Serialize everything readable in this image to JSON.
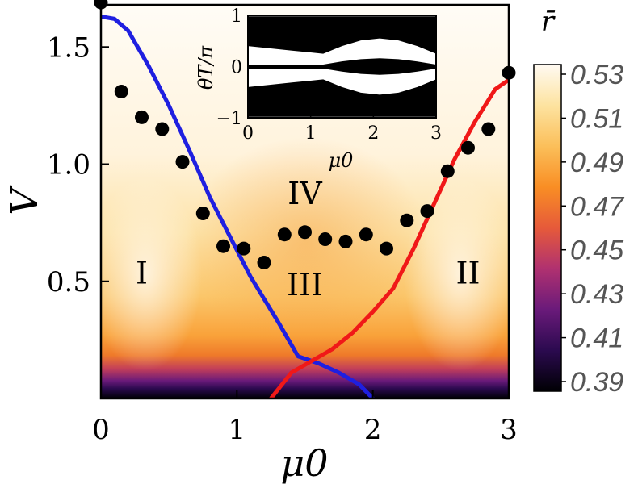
{
  "chart_data": {
    "type": "heatmap",
    "title": "",
    "xlabel": "μ0",
    "ylabel": "V",
    "xlim": [
      0,
      3
    ],
    "ylim": [
      0,
      1.68
    ],
    "x_ticks": [
      "0",
      "1",
      "2",
      "3"
    ],
    "y_ticks": [
      "0.5",
      "1.0",
      "1.5"
    ],
    "y_tick_values": [
      0.5,
      1.0,
      1.5
    ],
    "colorbar": {
      "label": "r̄",
      "min": 0.39,
      "max": 0.53,
      "ticks": [
        "0.53",
        "0.51",
        "0.49",
        "0.47",
        "0.45",
        "0.43",
        "0.41",
        "0.39"
      ],
      "colors": [
        "#000004",
        "#2b0a4f",
        "#6a1a7a",
        "#b03170",
        "#e65a3a",
        "#f98e24",
        "#fbbf5a",
        "#fde3a0",
        "#fffaf2"
      ]
    },
    "regions": [
      {
        "label": "I",
        "x": 0.3,
        "y": 0.49
      },
      {
        "label": "II",
        "x": 2.7,
        "y": 0.49
      },
      {
        "label": "III",
        "x": 1.5,
        "y": 0.44
      },
      {
        "label": "IV",
        "x": 1.5,
        "y": 0.83
      }
    ],
    "series": [
      {
        "name": "blue-boundary",
        "color": "#1f1fe0",
        "x": [
          0.0,
          0.1,
          0.2,
          0.35,
          0.5,
          0.65,
          0.8,
          0.95,
          1.1,
          1.3,
          1.45,
          1.6,
          1.75,
          1.9,
          2.0
        ],
        "y": [
          1.63,
          1.62,
          1.57,
          1.42,
          1.25,
          1.06,
          0.86,
          0.69,
          0.52,
          0.33,
          0.18,
          0.15,
          0.11,
          0.06,
          0.0
        ]
      },
      {
        "name": "red-boundary",
        "color": "#f01818",
        "x": [
          1.25,
          1.4,
          1.55,
          1.7,
          1.85,
          2.0,
          2.15,
          2.3,
          2.45,
          2.6,
          2.75,
          2.9,
          3.0
        ],
        "y": [
          0.0,
          0.11,
          0.16,
          0.21,
          0.28,
          0.37,
          0.47,
          0.64,
          0.83,
          1.02,
          1.18,
          1.32,
          1.36
        ]
      },
      {
        "name": "black-dots",
        "color": "#000000",
        "x": [
          0.0,
          0.15,
          0.3,
          0.45,
          0.6,
          0.75,
          0.9,
          1.05,
          1.2,
          1.35,
          1.5,
          1.65,
          1.8,
          1.95,
          2.1,
          2.25,
          2.4,
          2.55,
          2.7,
          2.85,
          3.0
        ],
        "y": [
          1.69,
          1.31,
          1.2,
          1.15,
          1.01,
          0.79,
          0.65,
          0.64,
          0.58,
          0.7,
          0.71,
          0.68,
          0.67,
          0.7,
          0.64,
          0.76,
          0.8,
          0.97,
          1.07,
          1.15,
          1.39
        ]
      }
    ],
    "inset": {
      "xlabel": "μ0",
      "ylabel": "θT/π",
      "x_ticks": [
        "0",
        "1",
        "2",
        "3"
      ],
      "y_ticks": [
        "1",
        "0",
        "−1"
      ],
      "xlim": [
        0,
        3
      ],
      "ylim": [
        -1,
        1
      ]
    }
  }
}
